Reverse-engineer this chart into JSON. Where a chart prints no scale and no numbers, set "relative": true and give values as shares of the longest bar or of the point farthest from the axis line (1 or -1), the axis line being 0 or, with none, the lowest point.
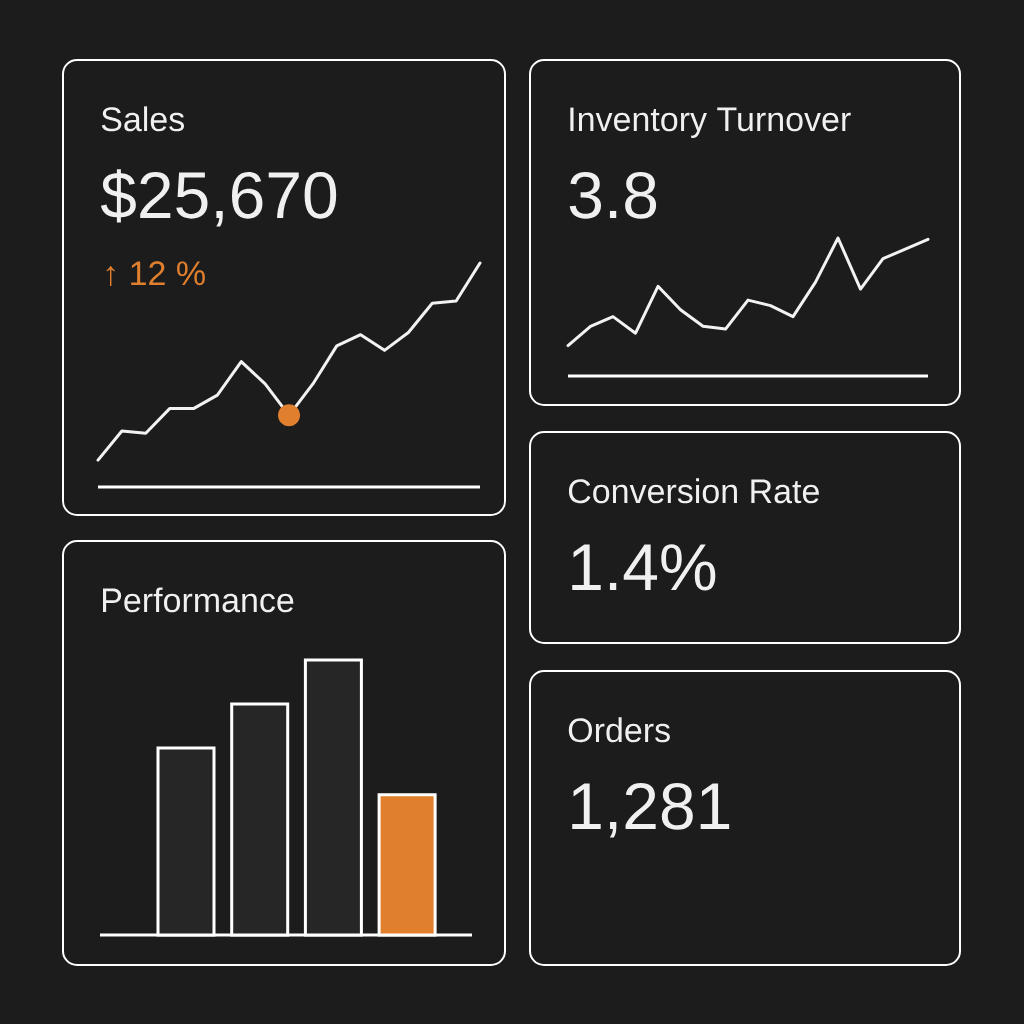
{
  "chart_data": [
    {
      "type": "line",
      "title": "Sales",
      "subtitle": "$25,670",
      "annotations": [
        "↑ 12 %"
      ],
      "relative": true,
      "categories": [
        null,
        null,
        null,
        null,
        null,
        null,
        null,
        null,
        null,
        null,
        null,
        null,
        null,
        null,
        null,
        null,
        null
      ],
      "series": [
        {
          "type": "line",
          "color": "#f2f2f2",
          "values": [
            0.12,
            0.25,
            0.24,
            0.35,
            0.35,
            0.41,
            0.56,
            0.46,
            0.32,
            0.46,
            0.63,
            0.68,
            0.61,
            0.69,
            0.82,
            0.83,
            1.0
          ]
        }
      ]
    },
    {
      "type": "line",
      "title": "Inventory Turnover",
      "subtitle": "3.8",
      "relative": true,
      "color": "#f2f2f2",
      "categories": [
        null,
        null,
        null,
        null,
        null,
        null,
        null,
        null,
        null,
        null,
        null,
        null,
        null,
        null,
        null,
        null,
        null
      ],
      "values": [
        0.22,
        0.36,
        0.43,
        0.31,
        0.65,
        0.48,
        0.36,
        0.34,
        0.55,
        0.51,
        0.43,
        0.68,
        1.0,
        0.63,
        0.85,
        0.92,
        0.99
      ]
    },
    {
      "type": "other",
      "title": "Conversion Rate",
      "subtitle": "1.4%"
    },
    {
      "type": "bar",
      "title": "Performance",
      "relative": true,
      "categories": [
        null,
        null,
        null,
        null
      ],
      "values": [
        0.68,
        0.84,
        1.0,
        0.51
      ],
      "colors": [
        "#262626",
        "#262626",
        "#262626",
        "#e07f2e"
      ]
    },
    {
      "type": "other",
      "title": "Orders",
      "subtitle": "1,281"
    }
  ]
}
